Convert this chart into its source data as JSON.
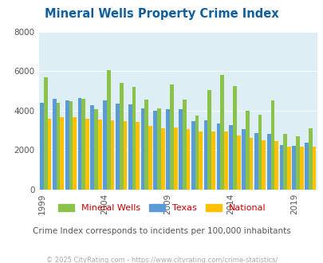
{
  "title": "Mineral Wells Property Crime Index",
  "subtitle": "Crime Index corresponds to incidents per 100,000 inhabitants",
  "footer": "© 2025 CityRating.com - https://www.cityrating.com/crime-statistics/",
  "years": [
    1999,
    2000,
    2001,
    2002,
    2003,
    2004,
    2005,
    2006,
    2007,
    2008,
    2009,
    2010,
    2011,
    2012,
    2013,
    2014,
    2015,
    2016,
    2017,
    2018,
    2019,
    2020
  ],
  "mineral_wells": [
    5700,
    4400,
    4450,
    4600,
    4050,
    6050,
    5400,
    5200,
    4550,
    4100,
    5300,
    4550,
    3750,
    5050,
    5800,
    5250,
    4000,
    3800,
    4500,
    2800,
    2700,
    3100
  ],
  "texas": [
    4400,
    4600,
    4500,
    4650,
    4250,
    4500,
    4350,
    4300,
    4100,
    4000,
    4050,
    4050,
    3450,
    3500,
    3350,
    3250,
    3050,
    2850,
    2800,
    2250,
    2200,
    2350
  ],
  "national": [
    3600,
    3650,
    3650,
    3600,
    3550,
    3500,
    3450,
    3400,
    3200,
    3100,
    3150,
    3050,
    2950,
    2950,
    2950,
    2750,
    2600,
    2500,
    2450,
    2150,
    2150,
    2150
  ],
  "color_mw": "#8bc34a",
  "color_tx": "#5b9bd5",
  "color_na": "#ffc000",
  "bg_color": "#ddeef5",
  "ylim": [
    0,
    8000
  ],
  "yticks": [
    0,
    2000,
    4000,
    6000,
    8000
  ],
  "xtick_years": [
    1999,
    2004,
    2009,
    2014,
    2019
  ],
  "title_color": "#1060a0",
  "subtitle_color": "#555555",
  "footer_color": "#aaaaaa",
  "legend_label_color": "#cc0000"
}
